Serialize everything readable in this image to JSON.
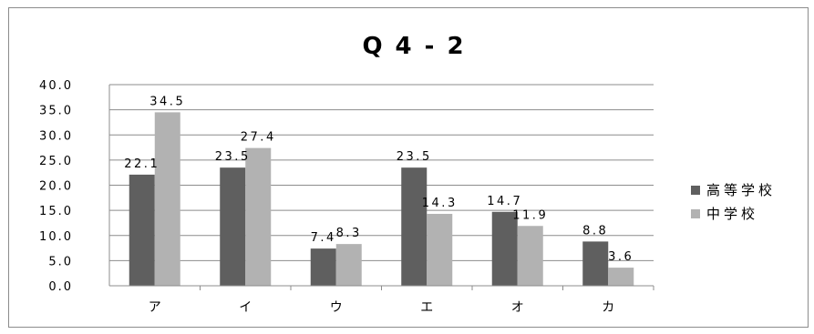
{
  "chart_data": {
    "type": "bar",
    "title": "Q4-2",
    "xlabel": "",
    "ylabel": "",
    "categories": [
      "ア",
      "イ",
      "ウ",
      "エ",
      "オ",
      "カ"
    ],
    "series": [
      {
        "name": "高等学校",
        "values": [
          22.1,
          23.5,
          7.4,
          23.5,
          14.7,
          8.8
        ],
        "color": "#5f5f5f"
      },
      {
        "name": "中学校",
        "values": [
          34.5,
          27.4,
          8.3,
          14.3,
          11.9,
          3.6
        ],
        "color": "#b2b2b2"
      }
    ],
    "ylim": [
      0,
      40
    ],
    "yticks": [
      "0.0",
      "5.0",
      "10.0",
      "15.0",
      "20.0",
      "25.0",
      "30.0",
      "35.0",
      "40.0"
    ],
    "grid": true,
    "legend_position": "right"
  }
}
